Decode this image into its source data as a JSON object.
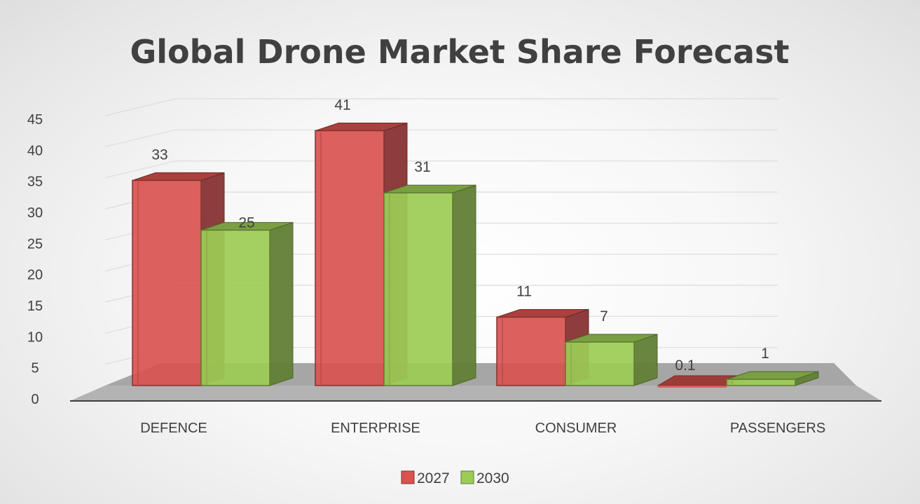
{
  "chart_data": {
    "type": "bar",
    "title": "Global Drone Market Share Forecast",
    "categories": [
      "DEFENCE",
      "ENTERPRISE",
      "CONSUMER",
      "PASSENGERS"
    ],
    "series": [
      {
        "name": "2027",
        "values": [
          33,
          41,
          11,
          0.1
        ],
        "labels": [
          "33",
          "41",
          "11",
          "0.1"
        ],
        "color": "#d9534f"
      },
      {
        "name": "2030",
        "values": [
          25,
          31,
          7,
          1
        ],
        "labels": [
          "25",
          "31",
          "7",
          "1"
        ],
        "color": "#9ccc55"
      }
    ],
    "ylim": [
      0,
      45
    ],
    "yticks": [
      "0",
      "5",
      "10",
      "15",
      "20",
      "25",
      "30",
      "35",
      "40",
      "45"
    ],
    "grid": true,
    "legend": "bottom",
    "style": "3d-clustered-column"
  }
}
